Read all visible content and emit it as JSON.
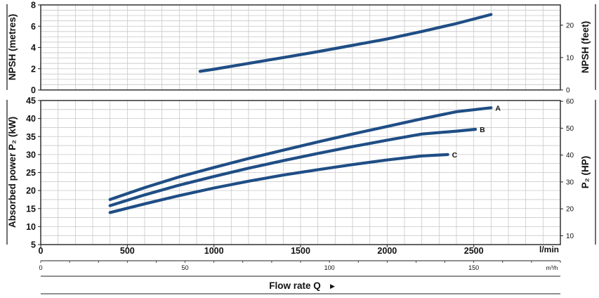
{
  "colors": {
    "curve": "#1f4e85",
    "grid": "#c8c8c8",
    "frame": "#222222"
  },
  "chart_data": [
    {
      "type": "line",
      "panel": "top",
      "ylabel": "NPSH  (metres)",
      "ylabel_right": "NPSH  (feet)",
      "ylim": [
        0,
        8
      ],
      "yticks": [
        "0",
        "2",
        "4",
        "6",
        "8"
      ],
      "ylim_right": [
        0,
        26.25
      ],
      "yticks_right": [
        "0",
        "10",
        "20"
      ],
      "grid": true,
      "series": [
        {
          "x": [
            920,
            1000,
            1200,
            1400,
            1600,
            1800,
            2000,
            2200,
            2400,
            2600
          ],
          "values": [
            1.75,
            1.95,
            2.5,
            3.05,
            3.6,
            4.2,
            4.8,
            5.5,
            6.25,
            7.1
          ]
        }
      ]
    },
    {
      "type": "line",
      "panel": "bottom",
      "ylabel": "Absorbed power  P₂  (kW)",
      "ylabel_right": "P₂  (HP)",
      "ylim": [
        5,
        45
      ],
      "yticks": [
        "5",
        "10",
        "15",
        "20",
        "25",
        "30",
        "35",
        "40",
        "45"
      ],
      "ylim_right": [
        6.7,
        60.3
      ],
      "yticks_right": [
        "10",
        "20",
        "30",
        "40",
        "50",
        "60"
      ],
      "grid": true,
      "series": [
        {
          "name": "A",
          "x": [
            400,
            600,
            800,
            1000,
            1200,
            1400,
            1600,
            1800,
            2000,
            2200,
            2400,
            2600
          ],
          "values": [
            17.5,
            20.8,
            23.8,
            26.4,
            28.9,
            31.2,
            33.5,
            35.7,
            37.8,
            39.9,
            41.9,
            43.0
          ]
        },
        {
          "name": "B",
          "x": [
            400,
            600,
            800,
            1000,
            1200,
            1400,
            1600,
            1800,
            2000,
            2200,
            2400,
            2510
          ],
          "values": [
            15.8,
            18.8,
            21.5,
            23.9,
            26.2,
            28.3,
            30.3,
            32.2,
            34.0,
            35.7,
            36.5,
            37.0
          ]
        },
        {
          "name": "C",
          "x": [
            400,
            600,
            800,
            1000,
            1200,
            1400,
            1600,
            1800,
            2000,
            2200,
            2350
          ],
          "values": [
            13.9,
            16.3,
            18.6,
            20.7,
            22.6,
            24.3,
            25.8,
            27.2,
            28.5,
            29.6,
            30.0
          ]
        }
      ]
    }
  ],
  "x_axis": {
    "unit_label": "l/min",
    "xlim": [
      0,
      3000
    ],
    "ticks": [
      "0",
      "500",
      "1000",
      "1500",
      "2000",
      "2500"
    ]
  },
  "x_axis_secondary": {
    "unit_label": "m³/h",
    "xlim": [
      0,
      180
    ],
    "ticks": [
      "0",
      "50",
      "100",
      "150"
    ]
  },
  "footer": {
    "label": "Flow rate Q",
    "arrow": "▶"
  }
}
